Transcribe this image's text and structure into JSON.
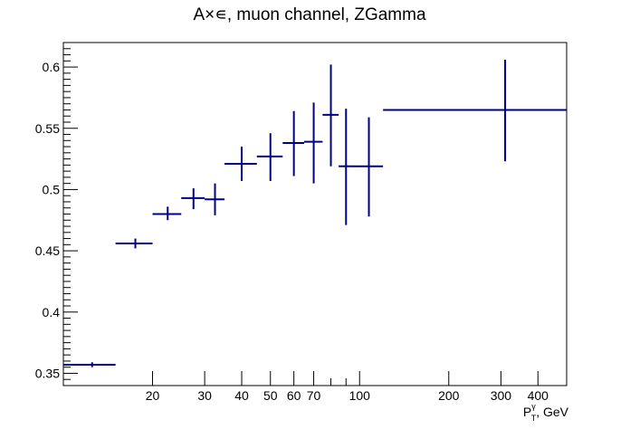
{
  "chart_data": {
    "type": "scatter",
    "title": "A×∊,  muon channel, ZGamma",
    "xlabel": {
      "base": "P",
      "sup": "γ",
      "sub": "T",
      "rest": ", GeV"
    },
    "ylabel": "",
    "xscale": "log",
    "xlim": [
      10,
      500
    ],
    "ylim": [
      0.34,
      0.62
    ],
    "grid": false,
    "color": "#000080",
    "x_ticks": [
      {
        "value": 20,
        "label": "20"
      },
      {
        "value": 30,
        "label": "30"
      },
      {
        "value": 40,
        "label": "40"
      },
      {
        "value": 50,
        "label": "50"
      },
      {
        "value": 60,
        "label": "60"
      },
      {
        "value": 70,
        "label": "70"
      },
      {
        "value": 100,
        "label": "100"
      },
      {
        "value": 200,
        "label": "200"
      },
      {
        "value": 300,
        "label": "300"
      },
      {
        "value": 400,
        "label": "400"
      }
    ],
    "y_ticks": [
      {
        "value": 0.35,
        "label": "0.35"
      },
      {
        "value": 0.4,
        "label": "0.4"
      },
      {
        "value": 0.45,
        "label": "0.45"
      },
      {
        "value": 0.5,
        "label": "0.5"
      },
      {
        "value": 0.55,
        "label": "0.55"
      },
      {
        "value": 0.6,
        "label": "0.6"
      }
    ],
    "series": [
      {
        "points": [
          {
            "x": 12.5,
            "xlo": 10,
            "xhi": 15,
            "y": 0.357,
            "ylo": 0.355,
            "yhi": 0.359
          },
          {
            "x": 17.5,
            "xlo": 15,
            "xhi": 20,
            "y": 0.456,
            "ylo": 0.452,
            "yhi": 0.46
          },
          {
            "x": 22.5,
            "xlo": 20,
            "xhi": 25,
            "y": 0.48,
            "ylo": 0.475,
            "yhi": 0.486
          },
          {
            "x": 27.5,
            "xlo": 25,
            "xhi": 30,
            "y": 0.493,
            "ylo": 0.484,
            "yhi": 0.501
          },
          {
            "x": 32.5,
            "xlo": 30,
            "xhi": 35,
            "y": 0.492,
            "ylo": 0.479,
            "yhi": 0.505
          },
          {
            "x": 40,
            "xlo": 35,
            "xhi": 45,
            "y": 0.521,
            "ylo": 0.507,
            "yhi": 0.535
          },
          {
            "x": 50,
            "xlo": 45,
            "xhi": 55,
            "y": 0.527,
            "ylo": 0.507,
            "yhi": 0.546
          },
          {
            "x": 60,
            "xlo": 55,
            "xhi": 65,
            "y": 0.538,
            "ylo": 0.511,
            "yhi": 0.564
          },
          {
            "x": 70,
            "xlo": 65,
            "xhi": 75,
            "y": 0.539,
            "ylo": 0.505,
            "yhi": 0.571
          },
          {
            "x": 80,
            "xlo": 75,
            "xhi": 85,
            "y": 0.561,
            "ylo": 0.519,
            "yhi": 0.602
          },
          {
            "x": 90,
            "xlo": 85,
            "xhi": 95,
            "y": 0.519,
            "ylo": 0.471,
            "yhi": 0.566
          },
          {
            "x": 107.5,
            "xlo": 95,
            "xhi": 120,
            "y": 0.519,
            "ylo": 0.478,
            "yhi": 0.559
          },
          {
            "x": 310,
            "xlo": 120,
            "xhi": 500,
            "y": 0.565,
            "ylo": 0.523,
            "yhi": 0.606
          }
        ]
      }
    ]
  }
}
